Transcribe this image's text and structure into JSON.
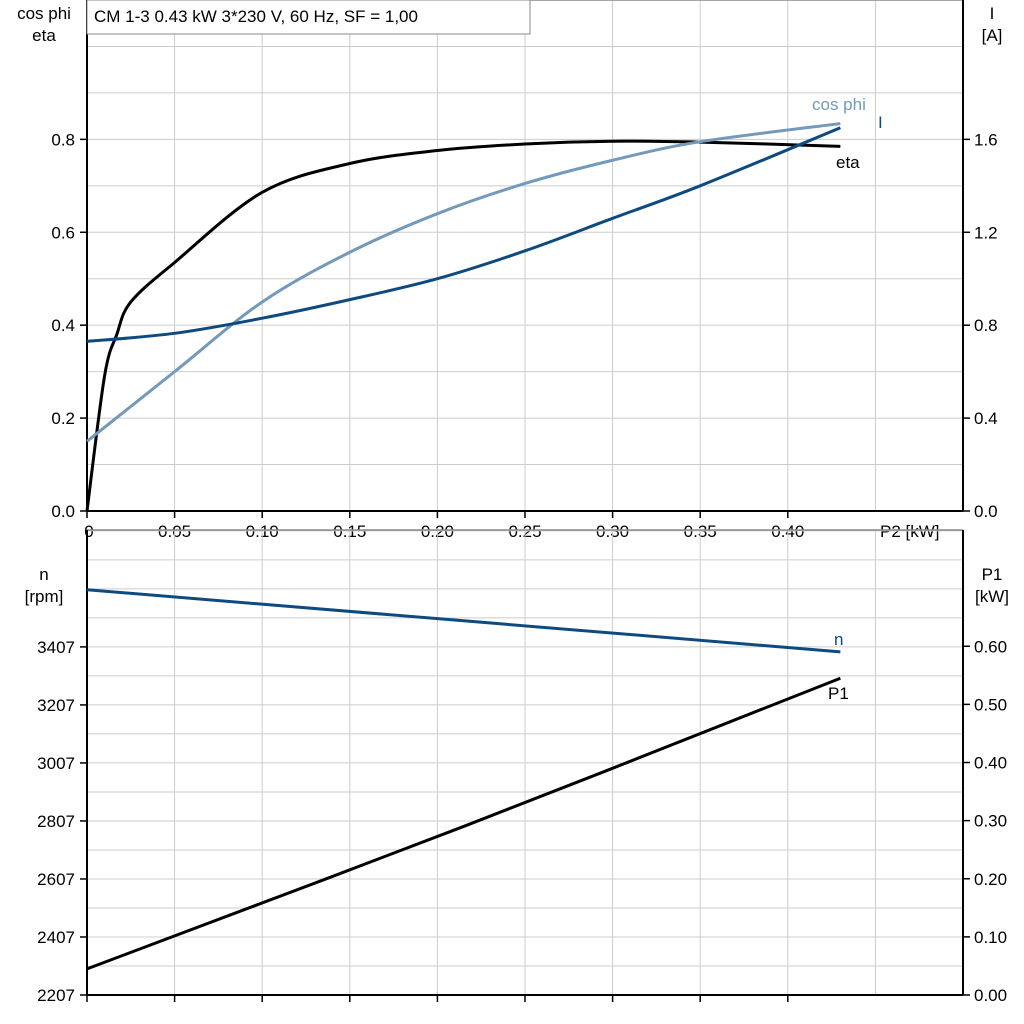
{
  "chart_data": [
    {
      "type": "line",
      "title": "CM 1-3   0.43 kW   3*230 V, 60 Hz, SF = 1,00",
      "xlabel": "P2 [kW]",
      "ylabel_left": [
        "cos phi",
        "eta"
      ],
      "ylabel_right": [
        "I",
        "[A]"
      ],
      "xlim": [
        0,
        0.5
      ],
      "ylim_left": [
        0,
        1.1
      ],
      "ylim_right": [
        0,
        2.2
      ],
      "x_ticks": [
        "0",
        "0.05",
        "0.10",
        "0.15",
        "0.20",
        "0.25",
        "0.30",
        "0.35",
        "0.40"
      ],
      "y_ticks_left": [
        "0.0",
        "0.2",
        "0.4",
        "0.6",
        "0.8"
      ],
      "y_ticks_right": [
        "0.0",
        "0.4",
        "0.8",
        "1.2",
        "1.6"
      ],
      "grid": true,
      "series": [
        {
          "name": "eta",
          "axis": "left",
          "color": "#000000",
          "x": [
            0,
            0.01,
            0.017,
            0.025,
            0.05,
            0.1,
            0.15,
            0.2,
            0.25,
            0.3,
            0.35,
            0.43
          ],
          "y": [
            0,
            0.29,
            0.38,
            0.45,
            0.535,
            0.686,
            0.748,
            0.776,
            0.79,
            0.796,
            0.794,
            0.785
          ]
        },
        {
          "name": "cos phi",
          "axis": "left",
          "color": "#7399bb",
          "x": [
            0,
            0.05,
            0.1,
            0.15,
            0.2,
            0.25,
            0.3,
            0.35,
            0.43
          ],
          "y": [
            0.15,
            0.3,
            0.45,
            0.557,
            0.64,
            0.705,
            0.755,
            0.795,
            0.834
          ]
        },
        {
          "name": "I",
          "axis": "right",
          "color": "#0d4a80",
          "x": [
            0,
            0.05,
            0.1,
            0.15,
            0.2,
            0.25,
            0.3,
            0.35,
            0.43
          ],
          "y": [
            0.73,
            0.765,
            0.83,
            0.91,
            1.0,
            1.12,
            1.26,
            1.4,
            1.65
          ]
        }
      ]
    },
    {
      "type": "line",
      "ylabel_left": [
        "n",
        "[rpm]"
      ],
      "ylabel_right": [
        "P1",
        "[kW]"
      ],
      "xlim": [
        0,
        0.5
      ],
      "ylim_left": [
        2207,
        3810
      ],
      "ylim_right": [
        0,
        0.8
      ],
      "y_ticks_left": [
        "2207",
        "2407",
        "2607",
        "2807",
        "3007",
        "3207",
        "3407"
      ],
      "y_ticks_right": [
        "0.00",
        "0.10",
        "0.20",
        "0.30",
        "0.40",
        "0.50",
        "0.60"
      ],
      "grid": true,
      "series": [
        {
          "name": "n",
          "axis": "left",
          "color": "#0d4a80",
          "x": [
            0,
            0.43
          ],
          "y": [
            3604,
            3390
          ]
        },
        {
          "name": "P1",
          "axis": "right",
          "color": "#000000",
          "x": [
            0,
            0.215,
            0.43
          ],
          "y": [
            0.045,
            0.29,
            0.545
          ]
        }
      ]
    }
  ]
}
